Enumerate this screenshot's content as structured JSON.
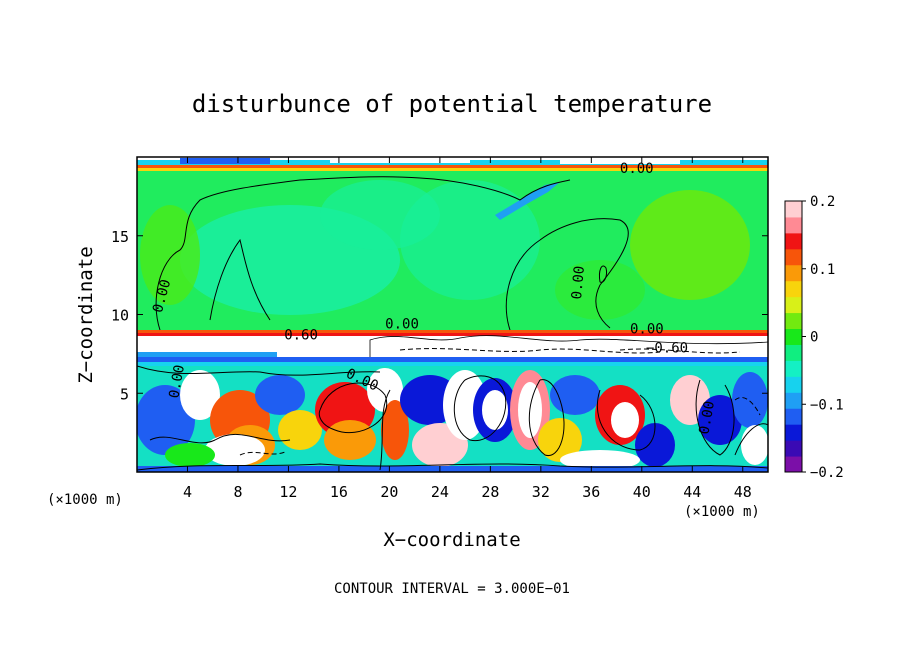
{
  "chart_data": {
    "type": "heatmap",
    "title": "disturbunce of potential temperature",
    "xlabel": "X−coordinate",
    "ylabel": "Z−coordinate",
    "x_unit": "(×1000 m)",
    "y_unit": "(×1000 m)",
    "footer": "CONTOUR INTERVAL = 3.000E−01",
    "xlim": [
      0,
      50
    ],
    "ylim": [
      0,
      20
    ],
    "x_ticks": [
      4,
      8,
      12,
      16,
      20,
      24,
      28,
      32,
      36,
      40,
      44,
      48
    ],
    "x_tick_labels": [
      "4",
      "8",
      "12",
      "16",
      "20",
      "24",
      "28",
      "32",
      "36",
      "40",
      "44",
      "48"
    ],
    "y_ticks": [
      5,
      10,
      15
    ],
    "y_tick_labels": [
      "5",
      "10",
      "15"
    ],
    "colorbar": {
      "range": [
        -0.2,
        0.2
      ],
      "ticks": [
        -0.2,
        -0.1,
        0,
        0.1,
        0.2
      ],
      "tick_labels": [
        "−0.2",
        "−0.1",
        "0",
        "0.1",
        "0.2"
      ],
      "colors": [
        "#7b0fa8",
        "#3a0ab4",
        "#0a18d8",
        "#1f5ef2",
        "#1f9ff4",
        "#17d2ee",
        "#14f0c4",
        "#10ee80",
        "#18e81a",
        "#72ea10",
        "#d8f018",
        "#f8d40c",
        "#fa9a08",
        "#f7550a",
        "#f01414",
        "#ff8a94",
        "#ffcfd2"
      ]
    },
    "contour_labels": [
      {
        "text": "0.00",
        "x": 39.6,
        "y": 19.0,
        "rotate": 0
      },
      {
        "text": "0.00",
        "x": 2.3,
        "y": 11.1,
        "rotate": -75
      },
      {
        "text": "0.00",
        "x": 35.3,
        "y": 12.0,
        "rotate": -85
      },
      {
        "text": "0.00",
        "x": 21.0,
        "y": 9.1,
        "rotate": 0
      },
      {
        "text": "0.60",
        "x": 13.0,
        "y": 8.4,
        "rotate": 0
      },
      {
        "text": "0.00",
        "x": 40.4,
        "y": 8.8,
        "rotate": 0
      },
      {
        "text": "−0.60",
        "x": 42.0,
        "y": 7.6,
        "rotate": 0
      },
      {
        "text": "0.00",
        "x": 3.5,
        "y": 5.7,
        "rotate": -80
      },
      {
        "text": "0.00",
        "x": 17.7,
        "y": 5.6,
        "rotate": 25
      },
      {
        "text": "0.00",
        "x": 45.5,
        "y": 3.4,
        "rotate": -80
      }
    ]
  }
}
